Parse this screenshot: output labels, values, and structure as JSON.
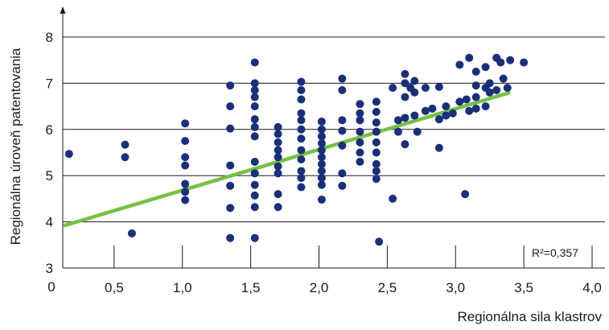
{
  "chart_data": {
    "type": "scatter",
    "xlabel": "Regionálna sila klastrov",
    "ylabel": "Regionálna úroveň patentovania",
    "xlim": [
      0,
      4.0
    ],
    "ylim": [
      3,
      8
    ],
    "x_ticks": [
      0.5,
      1.0,
      1.5,
      2.0,
      2.5,
      3.0,
      3.5,
      4.0
    ],
    "x_tick_labels": [
      "0,5",
      "1,0",
      "1,5",
      "2,0",
      "2,5",
      "3,0",
      "3,5",
      "4,0"
    ],
    "origin_label": "0",
    "y_ticks": [
      3,
      4,
      5,
      6,
      7,
      8
    ],
    "y_tick_labels": [
      "3",
      "4",
      "5",
      "6",
      "7",
      "8"
    ],
    "grid": "horizontal",
    "annotation": "R²=0,357",
    "colors": {
      "points": "#1b2f78",
      "trend": "#76c043",
      "grid": "#1a1a1a"
    },
    "trend_line": {
      "x": [
        0.0,
        3.4
      ],
      "y": [
        3.95,
        6.8
      ]
    },
    "points": [
      {
        "x": 0.17,
        "y": 5.47
      },
      {
        "x": 0.58,
        "y": 5.67
      },
      {
        "x": 0.58,
        "y": 5.4
      },
      {
        "x": 0.63,
        "y": 3.75
      },
      {
        "x": 1.02,
        "y": 6.13
      },
      {
        "x": 1.02,
        "y": 5.75
      },
      {
        "x": 1.02,
        "y": 5.4
      },
      {
        "x": 1.02,
        "y": 5.22
      },
      {
        "x": 1.02,
        "y": 4.82
      },
      {
        "x": 1.02,
        "y": 4.65
      },
      {
        "x": 1.02,
        "y": 4.47
      },
      {
        "x": 1.35,
        "y": 6.95
      },
      {
        "x": 1.35,
        "y": 6.5
      },
      {
        "x": 1.35,
        "y": 6.02
      },
      {
        "x": 1.35,
        "y": 5.22
      },
      {
        "x": 1.35,
        "y": 4.78
      },
      {
        "x": 1.35,
        "y": 4.3
      },
      {
        "x": 1.35,
        "y": 3.65
      },
      {
        "x": 1.53,
        "y": 7.45
      },
      {
        "x": 1.53,
        "y": 7.0
      },
      {
        "x": 1.53,
        "y": 6.85
      },
      {
        "x": 1.53,
        "y": 6.7
      },
      {
        "x": 1.53,
        "y": 6.5
      },
      {
        "x": 1.53,
        "y": 6.22
      },
      {
        "x": 1.53,
        "y": 6.05
      },
      {
        "x": 1.53,
        "y": 5.85
      },
      {
        "x": 1.53,
        "y": 5.3
      },
      {
        "x": 1.53,
        "y": 5.05
      },
      {
        "x": 1.53,
        "y": 4.8
      },
      {
        "x": 1.53,
        "y": 4.57
      },
      {
        "x": 1.53,
        "y": 4.32
      },
      {
        "x": 1.53,
        "y": 3.65
      },
      {
        "x": 1.7,
        "y": 6.05
      },
      {
        "x": 1.7,
        "y": 5.9
      },
      {
        "x": 1.7,
        "y": 5.72
      },
      {
        "x": 1.7,
        "y": 5.55
      },
      {
        "x": 1.7,
        "y": 5.4
      },
      {
        "x": 1.7,
        "y": 5.2
      },
      {
        "x": 1.7,
        "y": 5.05
      },
      {
        "x": 1.7,
        "y": 4.6
      },
      {
        "x": 1.7,
        "y": 4.32
      },
      {
        "x": 1.87,
        "y": 7.03
      },
      {
        "x": 1.87,
        "y": 6.85
      },
      {
        "x": 1.87,
        "y": 6.65
      },
      {
        "x": 1.87,
        "y": 6.35
      },
      {
        "x": 1.87,
        "y": 6.2
      },
      {
        "x": 1.87,
        "y": 6.0
      },
      {
        "x": 1.87,
        "y": 5.8
      },
      {
        "x": 1.87,
        "y": 5.55
      },
      {
        "x": 1.87,
        "y": 5.35
      },
      {
        "x": 1.87,
        "y": 5.1
      },
      {
        "x": 1.87,
        "y": 4.95
      },
      {
        "x": 1.87,
        "y": 4.75
      },
      {
        "x": 2.02,
        "y": 6.17
      },
      {
        "x": 2.02,
        "y": 6.0
      },
      {
        "x": 2.02,
        "y": 5.85
      },
      {
        "x": 2.02,
        "y": 5.7
      },
      {
        "x": 2.02,
        "y": 5.55
      },
      {
        "x": 2.02,
        "y": 5.4
      },
      {
        "x": 2.02,
        "y": 5.25
      },
      {
        "x": 2.02,
        "y": 5.1
      },
      {
        "x": 2.02,
        "y": 4.95
      },
      {
        "x": 2.02,
        "y": 4.8
      },
      {
        "x": 2.02,
        "y": 4.48
      },
      {
        "x": 2.17,
        "y": 7.1
      },
      {
        "x": 2.17,
        "y": 6.85
      },
      {
        "x": 2.17,
        "y": 6.2
      },
      {
        "x": 2.17,
        "y": 5.97
      },
      {
        "x": 2.17,
        "y": 5.65
      },
      {
        "x": 2.17,
        "y": 5.05
      },
      {
        "x": 2.17,
        "y": 4.78
      },
      {
        "x": 2.3,
        "y": 6.55
      },
      {
        "x": 2.3,
        "y": 6.35
      },
      {
        "x": 2.3,
        "y": 6.2
      },
      {
        "x": 2.3,
        "y": 5.95
      },
      {
        "x": 2.3,
        "y": 5.72
      },
      {
        "x": 2.3,
        "y": 5.5
      },
      {
        "x": 2.3,
        "y": 5.3
      },
      {
        "x": 2.42,
        "y": 6.6
      },
      {
        "x": 2.42,
        "y": 6.38
      },
      {
        "x": 2.42,
        "y": 6.15
      },
      {
        "x": 2.42,
        "y": 5.95
      },
      {
        "x": 2.42,
        "y": 5.72
      },
      {
        "x": 2.42,
        "y": 5.5
      },
      {
        "x": 2.42,
        "y": 5.25
      },
      {
        "x": 2.42,
        "y": 5.1
      },
      {
        "x": 2.42,
        "y": 4.93
      },
      {
        "x": 2.44,
        "y": 3.57
      },
      {
        "x": 2.54,
        "y": 6.9
      },
      {
        "x": 2.54,
        "y": 4.5
      },
      {
        "x": 2.58,
        "y": 6.2
      },
      {
        "x": 2.58,
        "y": 5.95
      },
      {
        "x": 2.63,
        "y": 7.2
      },
      {
        "x": 2.63,
        "y": 7.0
      },
      {
        "x": 2.63,
        "y": 6.7
      },
      {
        "x": 2.63,
        "y": 6.25
      },
      {
        "x": 2.63,
        "y": 5.68
      },
      {
        "x": 2.67,
        "y": 6.9
      },
      {
        "x": 2.7,
        "y": 7.05
      },
      {
        "x": 2.7,
        "y": 6.8
      },
      {
        "x": 2.7,
        "y": 6.3
      },
      {
        "x": 2.72,
        "y": 5.95
      },
      {
        "x": 2.78,
        "y": 6.9
      },
      {
        "x": 2.78,
        "y": 6.4
      },
      {
        "x": 2.83,
        "y": 6.45
      },
      {
        "x": 2.88,
        "y": 6.92
      },
      {
        "x": 2.88,
        "y": 6.22
      },
      {
        "x": 2.88,
        "y": 5.6
      },
      {
        "x": 2.93,
        "y": 6.5
      },
      {
        "x": 2.93,
        "y": 6.3
      },
      {
        "x": 2.98,
        "y": 6.35
      },
      {
        "x": 3.03,
        "y": 7.4
      },
      {
        "x": 3.03,
        "y": 6.6
      },
      {
        "x": 3.07,
        "y": 4.6
      },
      {
        "x": 3.08,
        "y": 6.65
      },
      {
        "x": 3.1,
        "y": 7.55
      },
      {
        "x": 3.1,
        "y": 6.4
      },
      {
        "x": 3.15,
        "y": 7.25
      },
      {
        "x": 3.15,
        "y": 6.95
      },
      {
        "x": 3.15,
        "y": 6.7
      },
      {
        "x": 3.15,
        "y": 6.45
      },
      {
        "x": 3.22,
        "y": 7.35
      },
      {
        "x": 3.22,
        "y": 6.9
      },
      {
        "x": 3.22,
        "y": 6.5
      },
      {
        "x": 3.25,
        "y": 7.0
      },
      {
        "x": 3.25,
        "y": 6.8
      },
      {
        "x": 3.3,
        "y": 7.55
      },
      {
        "x": 3.3,
        "y": 6.85
      },
      {
        "x": 3.33,
        "y": 7.45
      },
      {
        "x": 3.35,
        "y": 7.1
      },
      {
        "x": 3.38,
        "y": 6.9
      },
      {
        "x": 3.4,
        "y": 7.5
      },
      {
        "x": 3.5,
        "y": 7.45
      }
    ]
  }
}
